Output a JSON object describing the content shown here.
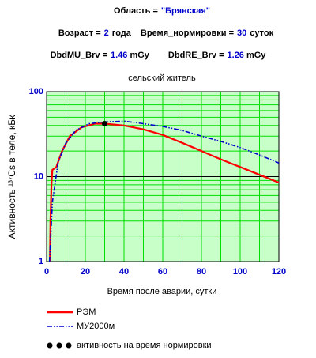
{
  "header": {
    "region": {
      "label": "Область =",
      "value": "\"Брянская\""
    },
    "params": [
      {
        "label": "Возраст =",
        "value": 2,
        "unit": "года"
      },
      {
        "label": "Время_нормировки =",
        "value": 30,
        "unit": "суток"
      }
    ],
    "doses": [
      {
        "label": "DbdMU_Brv =",
        "value": 1.46,
        "unit": "mGy"
      },
      {
        "label": "DbdRE_Brv =",
        "value": 1.26,
        "unit": "mGy"
      }
    ]
  },
  "chart_data": {
    "type": "line",
    "title": "сельский житель",
    "xlabel": "Время после аварии, сутки",
    "ylabel": "Активность ¹³⁷Cs в теле, кБк",
    "xlim": [
      0,
      120
    ],
    "xticks": [
      0,
      20,
      40,
      60,
      80,
      100,
      120
    ],
    "xminorticks": [
      10,
      30,
      50,
      70,
      90,
      110
    ],
    "ylim": [
      1,
      100
    ],
    "log_y": true,
    "yticks": [
      1,
      10,
      100
    ],
    "yminorticks": [
      2,
      3,
      4,
      5,
      6,
      7,
      8,
      9,
      20,
      30,
      40,
      50,
      60,
      70,
      80,
      90
    ],
    "grid": true,
    "legend": "bottom-left",
    "series": [
      {
        "name": "РЭМ",
        "color": "#ff0000",
        "style": "solid",
        "x": [
          1.7,
          2,
          2.5,
          3,
          5,
          8,
          12,
          18,
          25,
          30,
          40,
          50,
          60,
          70,
          80,
          90,
          100,
          110,
          120
        ],
        "values": [
          1,
          3,
          8,
          12,
          13,
          20,
          30,
          38,
          42,
          42,
          40,
          36,
          31,
          25,
          20,
          16,
          13,
          10.5,
          8.5
        ]
      },
      {
        "name": "МУ2000м",
        "color": "#0000cc",
        "style": "dashdot",
        "x": [
          1.5,
          3,
          6,
          10,
          15,
          22,
          30,
          40,
          50,
          60,
          70,
          80,
          90,
          100,
          110,
          120
        ],
        "values": [
          1,
          5,
          15,
          25,
          35,
          42,
          44,
          45,
          42,
          39,
          35,
          30,
          26,
          22,
          18,
          14.5
        ]
      },
      {
        "name": "активность на время нормировки",
        "color": "#000000",
        "style": "markers",
        "x": [
          30
        ],
        "values": [
          42
        ]
      }
    ]
  }
}
